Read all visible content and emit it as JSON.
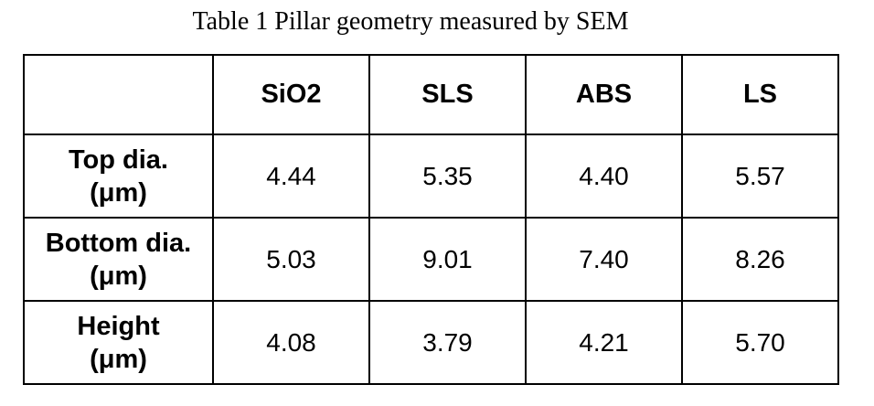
{
  "title": "Table 1 Pillar geometry measured by SEM",
  "table": {
    "columns": [
      "SiO2",
      "SLS",
      "ABS",
      "LS"
    ],
    "rows": [
      {
        "label": "Top dia.",
        "unit": "(μm)",
        "values": [
          "4.44",
          "5.35",
          "4.40",
          "5.57"
        ]
      },
      {
        "label": "Bottom dia.",
        "unit": "(μm)",
        "values": [
          "5.03",
          "9.01",
          "7.40",
          "8.26"
        ]
      },
      {
        "label": "Height",
        "unit": "(μm)",
        "values": [
          "4.08",
          "3.79",
          "4.21",
          "5.70"
        ]
      }
    ]
  }
}
